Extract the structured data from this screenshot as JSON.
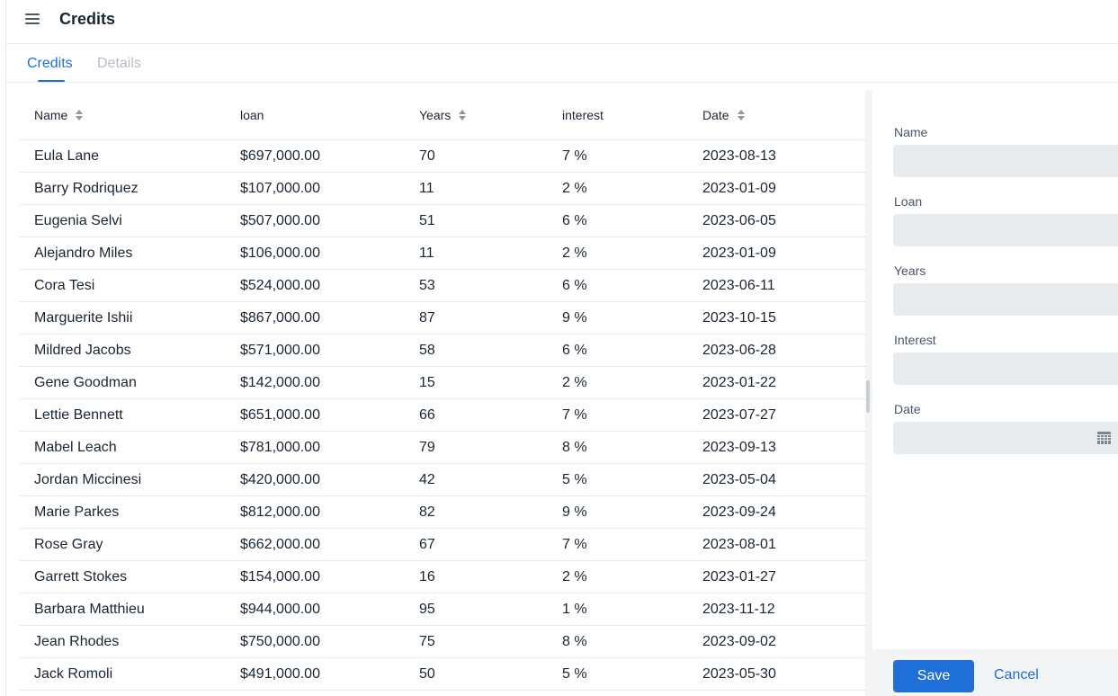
{
  "header": {
    "title": "Credits",
    "menu_icon": "menu-icon"
  },
  "tabs": [
    {
      "label": "Credits",
      "active": true
    },
    {
      "label": "Details",
      "active": false
    }
  ],
  "grid": {
    "columns": [
      "Name",
      "loan",
      "Years",
      "interest",
      "Date"
    ],
    "sortable": [
      true,
      false,
      true,
      false,
      true
    ],
    "rows": [
      [
        "Eula Lane",
        "$697,000.00",
        "70",
        "7 %",
        "2023-08-13"
      ],
      [
        "Barry Rodriquez",
        "$107,000.00",
        "11",
        "2 %",
        "2023-01-09"
      ],
      [
        "Eugenia Selvi",
        "$507,000.00",
        "51",
        "6 %",
        "2023-06-05"
      ],
      [
        "Alejandro Miles",
        "$106,000.00",
        "11",
        "2 %",
        "2023-01-09"
      ],
      [
        "Cora Tesi",
        "$524,000.00",
        "53",
        "6 %",
        "2023-06-11"
      ],
      [
        "Marguerite Ishii",
        "$867,000.00",
        "87",
        "9 %",
        "2023-10-15"
      ],
      [
        "Mildred Jacobs",
        "$571,000.00",
        "58",
        "6 %",
        "2023-06-28"
      ],
      [
        "Gene Goodman",
        "$142,000.00",
        "15",
        "2 %",
        "2023-01-22"
      ],
      [
        "Lettie Bennett",
        "$651,000.00",
        "66",
        "7 %",
        "2023-07-27"
      ],
      [
        "Mabel Leach",
        "$781,000.00",
        "79",
        "8 %",
        "2023-09-13"
      ],
      [
        "Jordan Miccinesi",
        "$420,000.00",
        "42",
        "5 %",
        "2023-05-04"
      ],
      [
        "Marie Parkes",
        "$812,000.00",
        "82",
        "9 %",
        "2023-09-24"
      ],
      [
        "Rose Gray",
        "$662,000.00",
        "67",
        "7 %",
        "2023-08-01"
      ],
      [
        "Garrett Stokes",
        "$154,000.00",
        "16",
        "2 %",
        "2023-01-27"
      ],
      [
        "Barbara Matthieu",
        "$944,000.00",
        "95",
        "1 %",
        "2023-11-12"
      ],
      [
        "Jean Rhodes",
        "$750,000.00",
        "75",
        "8 %",
        "2023-09-02"
      ],
      [
        "Jack Romoli",
        "$491,000.00",
        "50",
        "5 %",
        "2023-05-30"
      ]
    ]
  },
  "editor": {
    "fields": [
      {
        "label": "Name",
        "value": ""
      },
      {
        "label": "Loan",
        "value": ""
      },
      {
        "label": "Years",
        "value": ""
      },
      {
        "label": "Interest",
        "value": ""
      },
      {
        "label": "Date",
        "value": "",
        "icon": "calendar-icon"
      }
    ],
    "save_label": "Save",
    "cancel_label": "Cancel"
  },
  "colors": {
    "accent": "#1f6fd8",
    "field_background": "#e9ecef",
    "divider": "#e6e9ee"
  }
}
